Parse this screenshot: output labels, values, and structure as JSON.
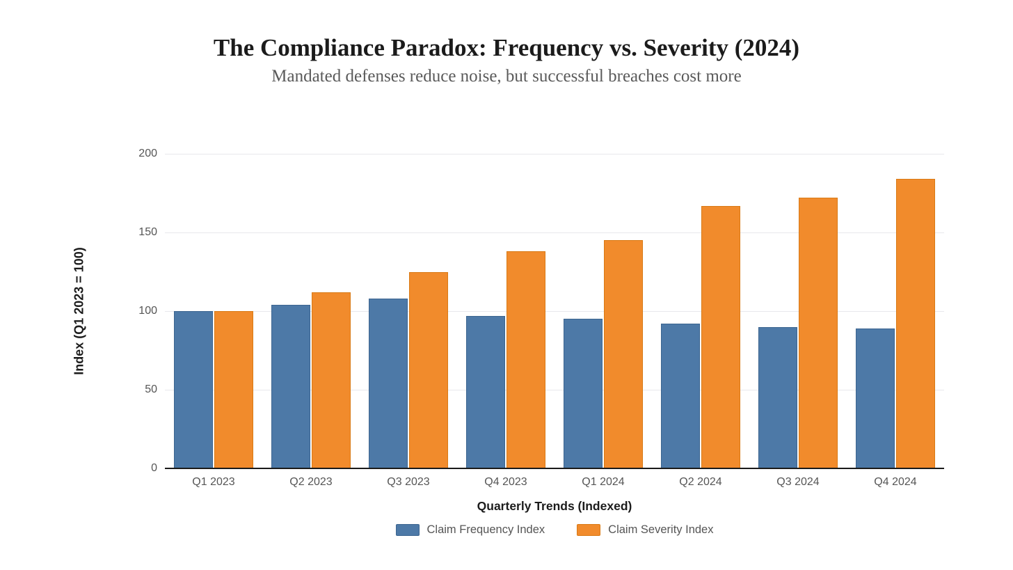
{
  "page": {
    "background": "#ffffff"
  },
  "chart_data": {
    "type": "bar",
    "title": "The Compliance Paradox: Frequency vs. Severity (2024)",
    "subtitle": "Mandated defenses reduce noise, but successful breaches cost more",
    "categories": [
      "Q1 2023",
      "Q2 2023",
      "Q3 2023",
      "Q4 2023",
      "Q1 2024",
      "Q2 2024",
      "Q3 2024",
      "Q4 2024"
    ],
    "series": [
      {
        "name": "Claim Frequency Index",
        "color": "#4d79a7",
        "border_color": "#3c6590",
        "values": [
          100,
          104,
          108,
          97,
          95,
          92,
          90,
          89
        ]
      },
      {
        "name": "Claim Severity Index",
        "color": "#f18b2c",
        "border_color": "#d97a15",
        "values": [
          100,
          112,
          125,
          138,
          145,
          167,
          172,
          184
        ]
      }
    ],
    "xlabel": "Quarterly Trends (Indexed)",
    "ylabel": "Index (Q1 2023 = 100)",
    "ylim": [
      0,
      200
    ],
    "yticks": [
      0,
      50,
      100,
      150,
      200
    ],
    "grid": true,
    "legend_position": "bottom",
    "colors": {
      "grid": "#e8e8ec",
      "axis": "#1a1a1a",
      "tick_text": "#555555",
      "axis_title_text": "#1c1c1c",
      "title_text": "#1b1b1b",
      "subtitle_text": "#5a5a5a",
      "legend_text": "#555555"
    }
  }
}
